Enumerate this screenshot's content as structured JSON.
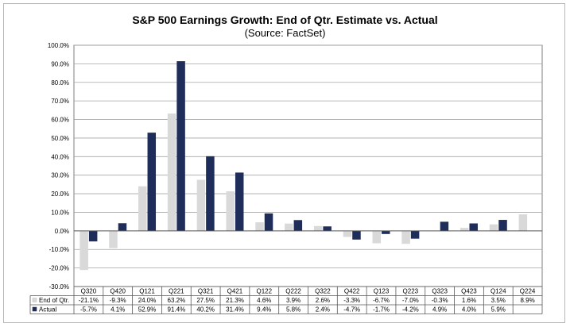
{
  "chart_data": {
    "type": "bar",
    "title": "S&P 500 Earnings Growth: End of Qtr. Estimate vs. Actual",
    "subtitle": "(Source: FactSet)",
    "categories": [
      "Q320",
      "Q420",
      "Q121",
      "Q221",
      "Q321",
      "Q421",
      "Q122",
      "Q222",
      "Q322",
      "Q422",
      "Q123",
      "Q223",
      "Q323",
      "Q423",
      "Q124",
      "Q224"
    ],
    "series": [
      {
        "name": "End of Qtr.",
        "color": "#d9d9d9",
        "values": [
          -21.1,
          -9.3,
          24.0,
          63.2,
          27.5,
          21.3,
          4.6,
          3.9,
          2.6,
          -3.3,
          -6.7,
          -7.0,
          -0.3,
          1.6,
          3.5,
          8.9
        ],
        "labels": [
          "-21.1%",
          "-9.3%",
          "24.0%",
          "63.2%",
          "27.5%",
          "21.3%",
          "4.6%",
          "3.9%",
          "2.6%",
          "-3.3%",
          "-6.7%",
          "-7.0%",
          "-0.3%",
          "1.6%",
          "3.5%",
          "8.9%"
        ]
      },
      {
        "name": "Actual",
        "color": "#1f2d5a",
        "values": [
          -5.7,
          4.1,
          52.9,
          91.4,
          40.2,
          31.4,
          9.4,
          5.8,
          2.4,
          -4.7,
          -1.7,
          -4.2,
          4.9,
          4.0,
          5.9,
          null
        ],
        "labels": [
          "-5.7%",
          "4.1%",
          "52.9%",
          "91.4%",
          "40.2%",
          "31.4%",
          "9.4%",
          "5.8%",
          "2.4%",
          "-4.7%",
          "-1.7%",
          "-4.2%",
          "4.9%",
          "4.0%",
          "5.9%",
          ""
        ]
      }
    ],
    "ylim": [
      -30,
      100
    ],
    "ytick_step": 10,
    "ytick_labels": [
      "-30.0%",
      "-20.0%",
      "-10.0%",
      "0.0%",
      "10.0%",
      "20.0%",
      "30.0%",
      "40.0%",
      "50.0%",
      "60.0%",
      "70.0%",
      "80.0%",
      "90.0%",
      "100.0%"
    ],
    "grid": true,
    "legend": "data-table"
  }
}
